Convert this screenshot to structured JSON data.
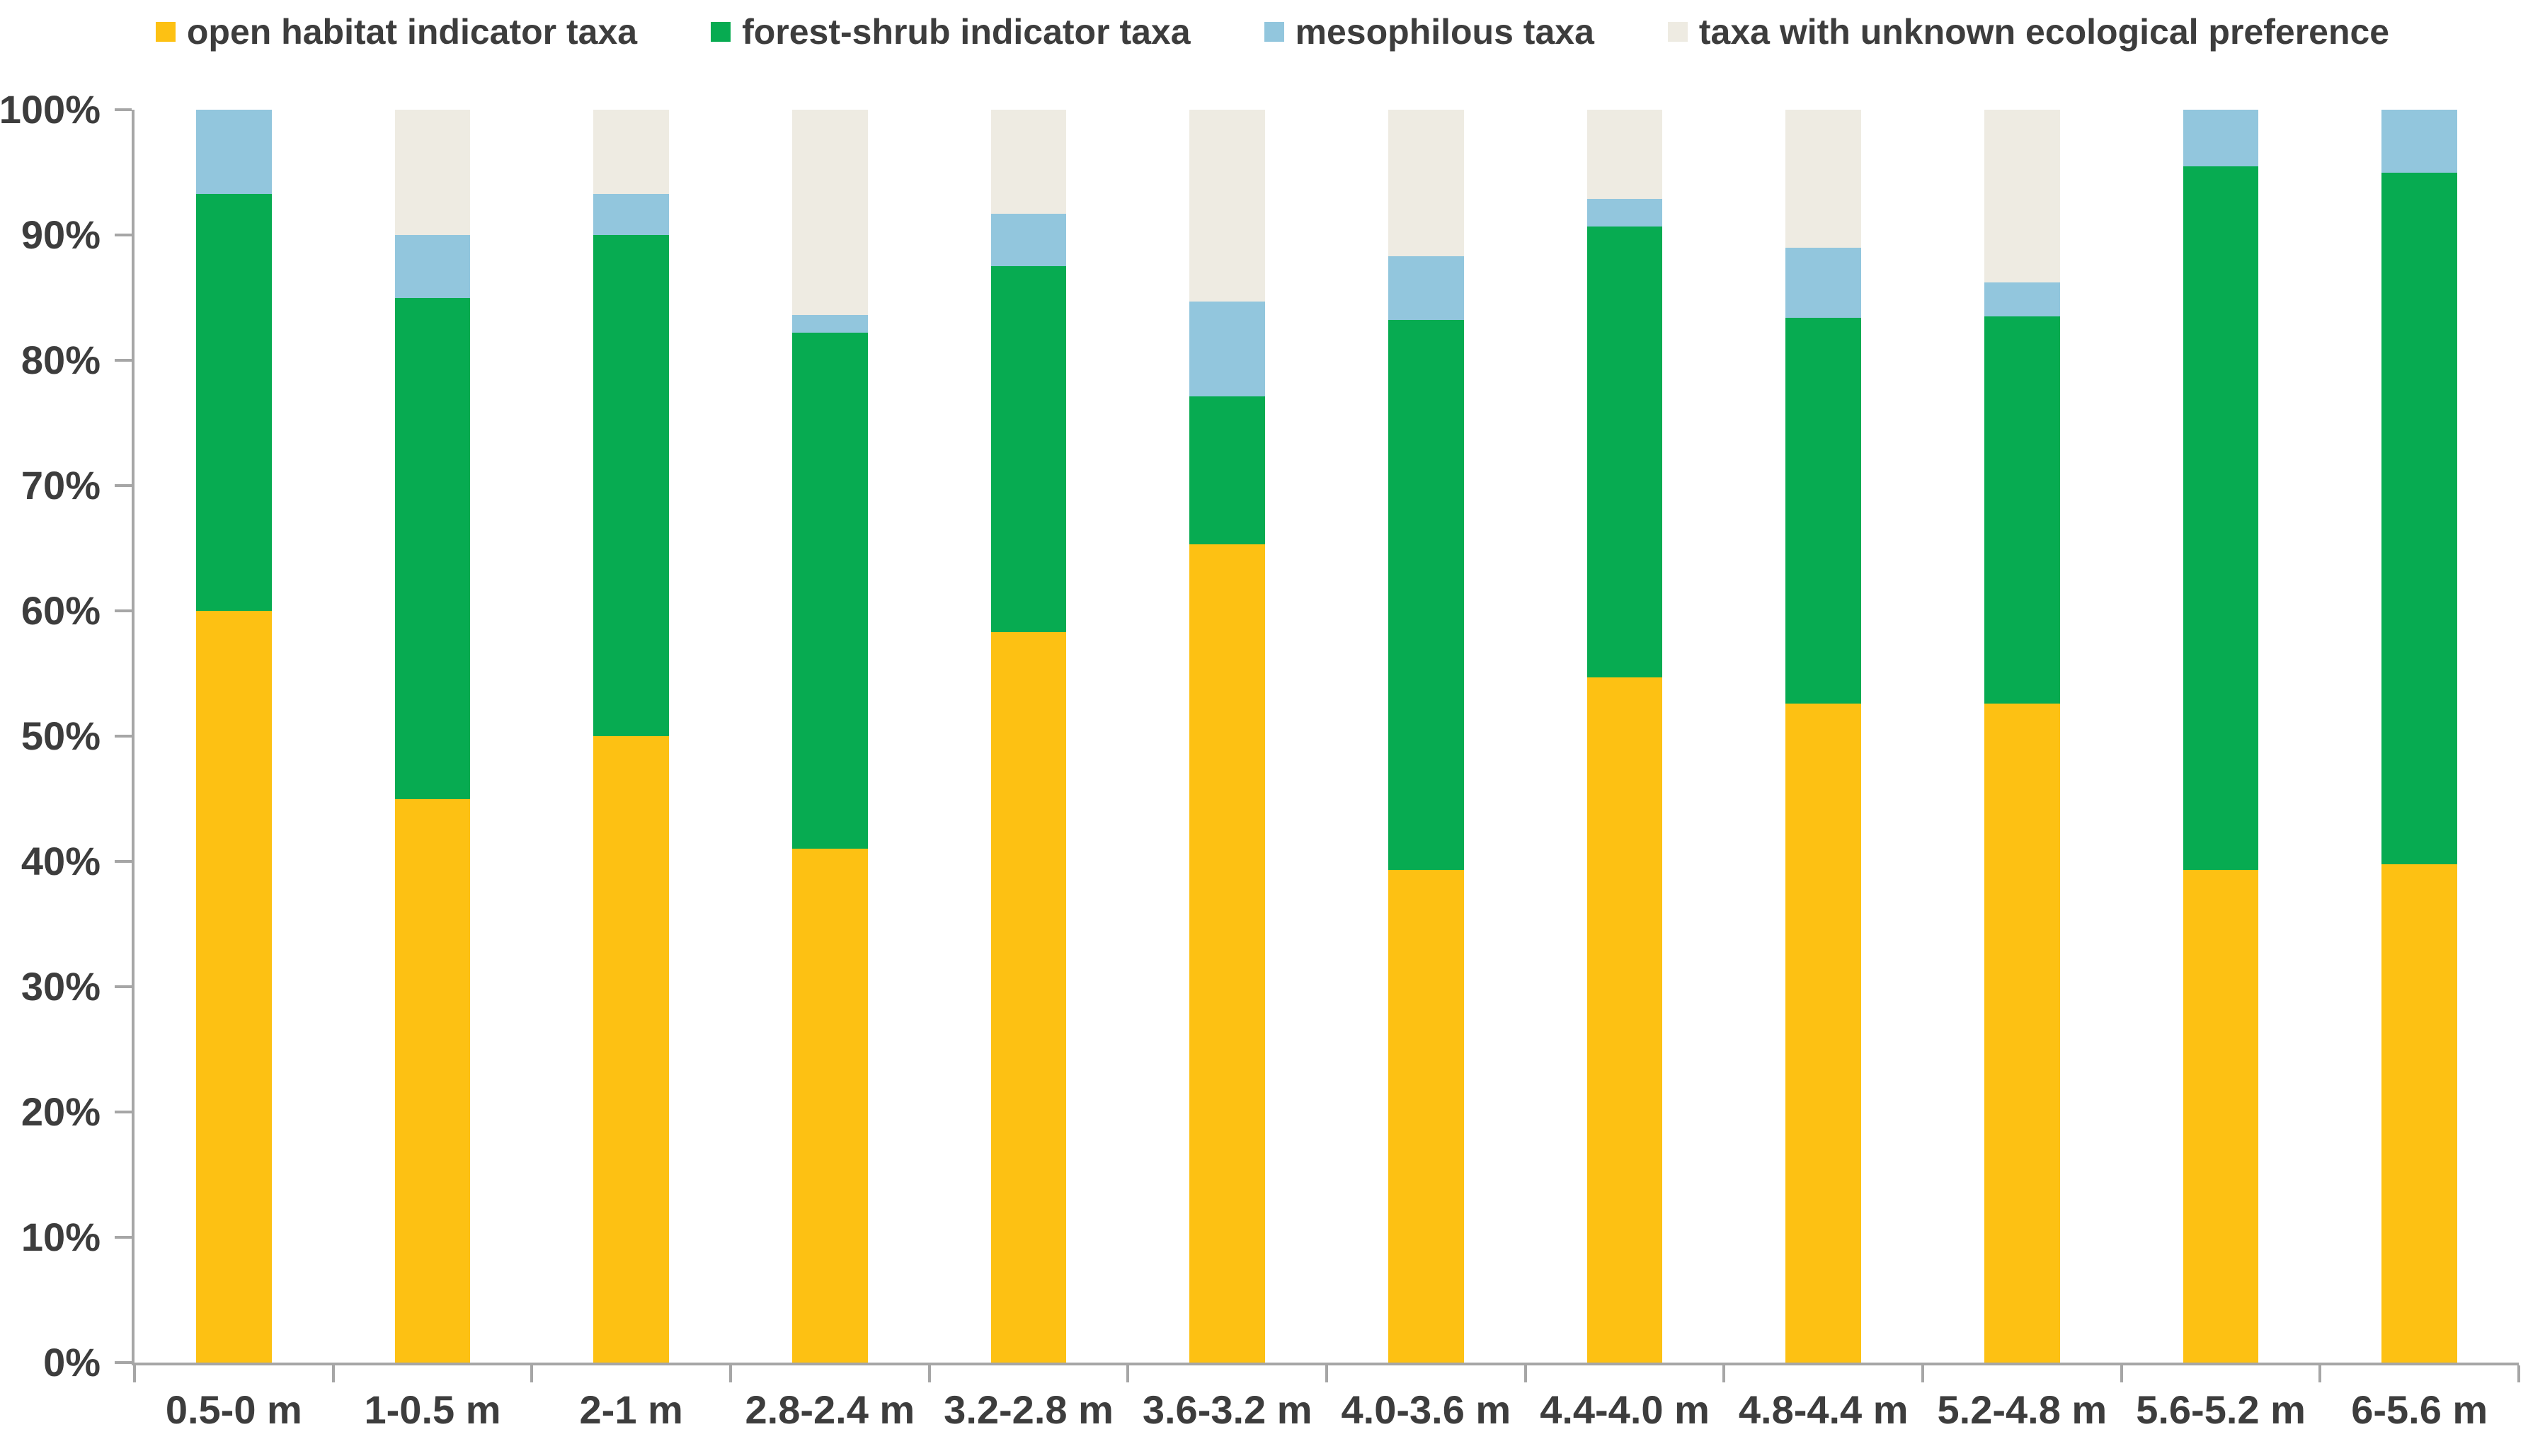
{
  "chart_data": {
    "type": "bar",
    "stacked": true,
    "orientation": "vertical",
    "title": "",
    "categories": [
      "0.5-0 m",
      "1-0.5 m",
      "2-1 m",
      "2.8-2.4 m",
      "3.2-2.8 m",
      "3.6-3.2 m",
      "4.0-3.6 m",
      "4.4-4.0 m",
      "4.8-4.4 m",
      "5.2-4.8 m",
      "5.6-5.2 m",
      "6-5.6 m"
    ],
    "series": [
      {
        "name": "open habitat indicator taxa",
        "color": "#FDC113",
        "values": [
          60,
          45,
          50,
          41,
          58.3,
          65.3,
          39.3,
          54.7,
          52.6,
          52.6,
          39.3,
          39.8
        ]
      },
      {
        "name": "forest-shrub indicator taxa",
        "color": "#07AB51",
        "values": [
          33.3,
          40,
          40,
          41.2,
          29.2,
          11.8,
          43.9,
          36,
          30.8,
          30.9,
          56.2,
          55.2
        ]
      },
      {
        "name": "mesophilous taxa",
        "color": "#92C6DD",
        "values": [
          6.7,
          5,
          3.3,
          1.4,
          4.2,
          7.6,
          5.1,
          2.2,
          5.6,
          2.7,
          4.5,
          5
        ]
      },
      {
        "name": "taxa with unknown ecological preference",
        "color": "#EEEBE2",
        "values": [
          0,
          10,
          6.7,
          16.4,
          8.3,
          15.3,
          11.7,
          7.1,
          11,
          13.8,
          0,
          0
        ]
      }
    ],
    "y_axis": {
      "min": 0,
      "max": 100,
      "step": 10,
      "unit": "%",
      "tick_labels": [
        "0%",
        "10%",
        "20%",
        "30%",
        "40%",
        "50%",
        "60%",
        "70%",
        "80%",
        "90%",
        "100%"
      ]
    },
    "x_axis": {
      "label": ""
    },
    "legend_position": "top",
    "grid": false
  },
  "colors": {
    "background": "#FFFFFF",
    "axis": "#A6A6A6",
    "label_text": "#3D3D3D"
  }
}
